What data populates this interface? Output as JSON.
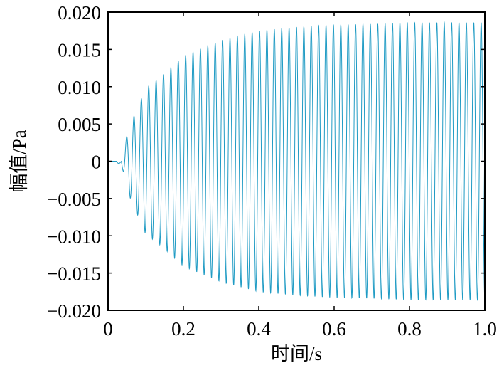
{
  "chart_data": {
    "type": "line",
    "title": "",
    "xlabel": "时间/s",
    "ylabel": "幅值/Pa",
    "xlim": [
      0,
      1.0
    ],
    "ylim": [
      -0.02,
      0.02
    ],
    "xticks": [
      0,
      0.2,
      0.4,
      0.6,
      0.8,
      1.0
    ],
    "xtick_labels": [
      "0",
      "0.2",
      "0.4",
      "0.6",
      "0.8",
      "1.0"
    ],
    "yticks": [
      0.02,
      0.015,
      0.01,
      0.005,
      0,
      -0.005,
      -0.01,
      -0.015,
      -0.02
    ],
    "ytick_labels": [
      "0.020",
      "0.015",
      "0.010",
      "0.005",
      "0",
      "−0.005",
      "−0.010",
      "−0.015",
      "−0.020"
    ],
    "grid": false,
    "legend": "none",
    "series": [
      {
        "color": "#1f9bc4",
        "x": [
          0,
          0.02,
          0.035,
          0.045,
          0.055,
          0.07,
          0.1,
          0.14,
          0.2,
          0.3,
          0.4,
          0.5,
          0.6,
          0.7,
          0.8,
          0.9,
          1.0
        ],
        "y": [
          0,
          0,
          -0.0003,
          -0.0024,
          0.0045,
          -0.0062,
          0.0098,
          -0.0113,
          0.0141,
          0.0162,
          0.0175,
          0.018,
          0.0183,
          0.0184,
          0.0186,
          0.0186,
          0.0186
        ],
        "frequency_hz": 51
      }
    ],
    "line_color": "#1f9bc4",
    "axis_color": "#000000"
  }
}
